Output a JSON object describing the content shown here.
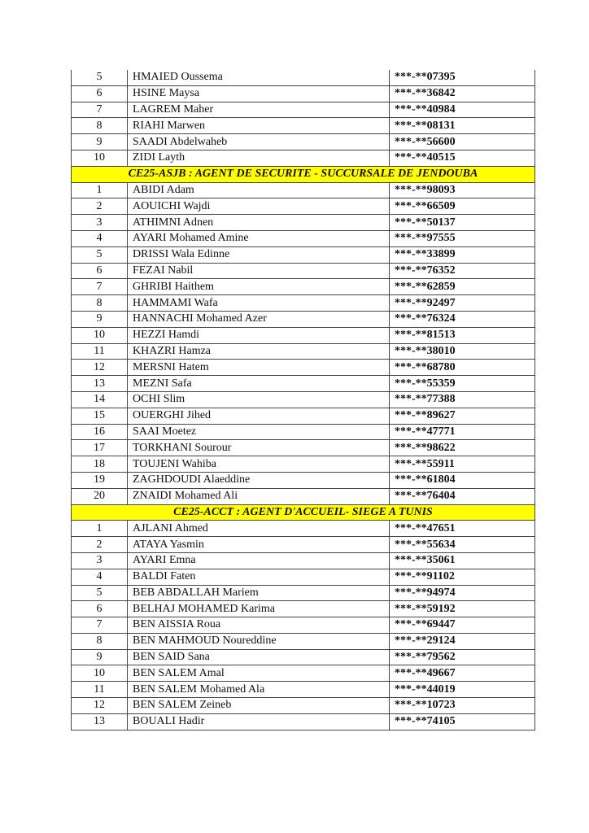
{
  "sections": [
    {
      "title": "",
      "rows": [
        [
          "5",
          "HMAIED Oussema",
          "***-**07395"
        ],
        [
          "6",
          "HSINE Maysa",
          "***-**36842"
        ],
        [
          "7",
          "LAGREM Maher",
          "***-**40984"
        ],
        [
          "8",
          "RIAHI Marwen",
          "***-**08131"
        ],
        [
          "9",
          "SAADI Abdelwaheb",
          "***-**56600"
        ],
        [
          "10",
          "ZIDI Layth",
          "***-**40515"
        ]
      ]
    },
    {
      "title": "CE25-ASJB : AGENT DE SECURITE - SUCCURSALE DE JENDOUBA",
      "rows": [
        [
          "1",
          "ABIDI Adam",
          "***-**98093"
        ],
        [
          "2",
          "AOUICHI Wajdi",
          "***-**66509"
        ],
        [
          "3",
          "ATHIMNI Adnen",
          "***-**50137"
        ],
        [
          "4",
          "AYARI Mohamed Amine",
          "***-**97555"
        ],
        [
          "5",
          "DRISSI Wala Edinne",
          "***-**33899"
        ],
        [
          "6",
          "FEZAI  Nabil",
          "***-**76352"
        ],
        [
          "7",
          "GHRIBI  Haithem",
          "***-**62859"
        ],
        [
          "8",
          "HAMMAMI Wafa",
          "***-**92497"
        ],
        [
          "9",
          "HANNACHI Mohamed Azer",
          "***-**76324"
        ],
        [
          "10",
          "HEZZI Hamdi",
          "***-**81513"
        ],
        [
          "11",
          "KHAZRI Hamza",
          "***-**38010"
        ],
        [
          "12",
          "MERSNI  Hatem",
          "***-**68780"
        ],
        [
          "13",
          "MEZNI Safa",
          "***-**55359"
        ],
        [
          "14",
          "OCHI Slim",
          "***-**77388"
        ],
        [
          "15",
          "OUERGHI  Jihed",
          "***-**89627"
        ],
        [
          "16",
          "SAAI Moetez",
          "***-**47771"
        ],
        [
          "17",
          "TORKHANI Sourour",
          "***-**98622"
        ],
        [
          "18",
          "TOUJENI Wahiba",
          "***-**55911"
        ],
        [
          "19",
          "ZAGHDOUDI Alaeddine",
          "***-**61804"
        ],
        [
          "20",
          "ZNAIDI Mohamed Ali",
          "***-**76404"
        ]
      ]
    },
    {
      "title": "CE25-ACCT : AGENT D'ACCUEIL- SIEGE A TUNIS",
      "rows": [
        [
          "1",
          "AJLANI  Ahmed",
          "***-**47651"
        ],
        [
          "2",
          "ATAYA Yasmin",
          "***-**55634"
        ],
        [
          "3",
          "AYARI Emna",
          "***-**35061"
        ],
        [
          "4",
          "BALDI Faten",
          "***-**91102"
        ],
        [
          "5",
          "BEB ABDALLAH Mariem",
          "***-**94974"
        ],
        [
          "6",
          "BELHAJ MOHAMED Karima",
          "***-**59192"
        ],
        [
          "7",
          "BEN AISSIA Roua",
          "***-**69447"
        ],
        [
          "8",
          "BEN MAHMOUD Noureddine",
          "***-**29124"
        ],
        [
          "9",
          "BEN SAID Sana",
          "***-**79562"
        ],
        [
          "10",
          "BEN SALEM Amal",
          "***-**49667"
        ],
        [
          "11",
          "BEN SALEM Mohamed Ala",
          "***-**44019"
        ],
        [
          "12",
          "BEN SALEM Zeineb",
          "***-**10723"
        ],
        [
          "13",
          "BOUALI  Hadir",
          "***-**74105"
        ]
      ]
    }
  ],
  "colors": {
    "section_header_bg": "#ffff00",
    "border": "#444444"
  }
}
